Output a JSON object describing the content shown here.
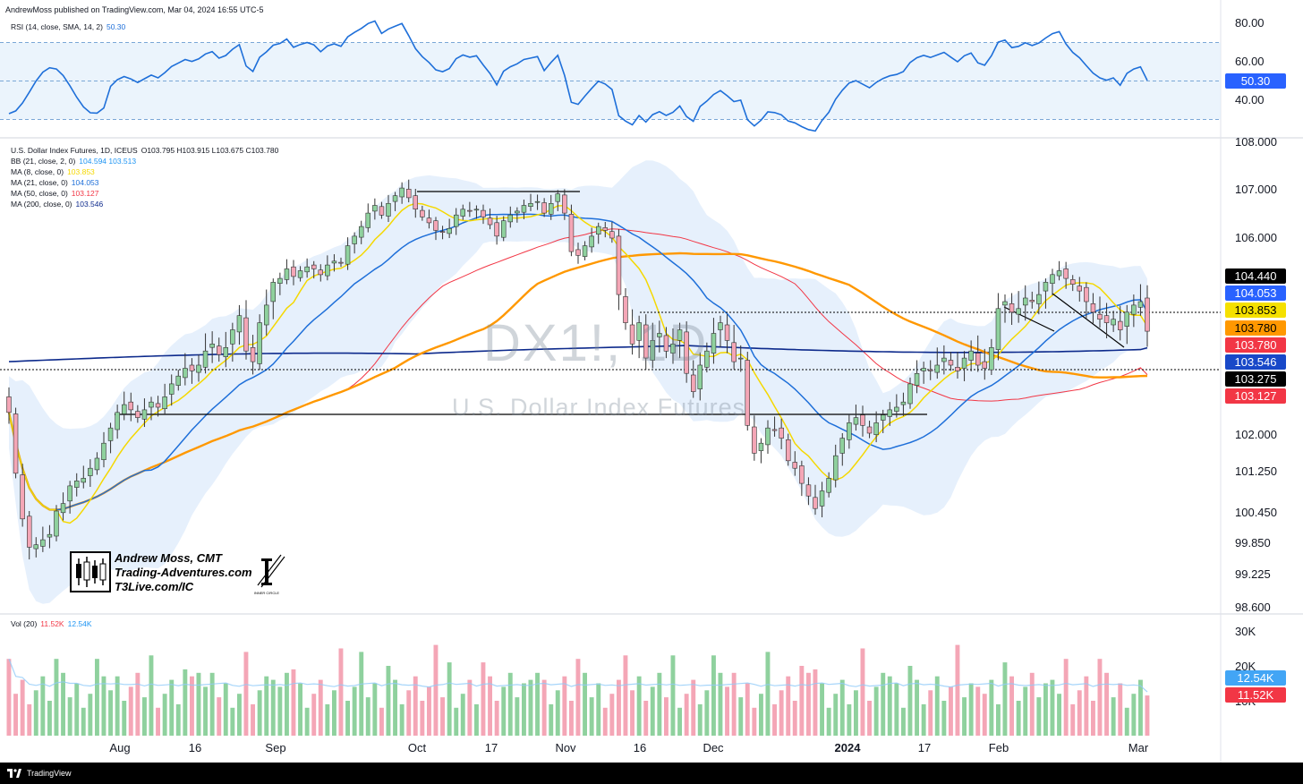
{
  "header": {
    "published": "AndrewMoss published on TradingView.com, Mar 04, 2024 16:55 UTC-5"
  },
  "rsi": {
    "label": "RSI (14, close, SMA, 14, 2)",
    "value": "50.30",
    "ticks": [
      "80.00",
      "60.00",
      "40.00"
    ],
    "badge": "50.30",
    "color": "#1e6fd9"
  },
  "main": {
    "legend": [
      {
        "label": "U.S. Dollar Index Futures, 1D, ICEUS",
        "values": "O103.795  H103.915  L103.675  C103.780",
        "color": "#131722"
      },
      {
        "label": "BB (21, close, 2, 0)",
        "values": "104.594  103.513",
        "color": "#2196f3"
      },
      {
        "label": "MA (8, close, 0)",
        "values": "103.853",
        "color": "#f5d800"
      },
      {
        "label": "MA (21, close, 0)",
        "values": "104.053",
        "color": "#1e6fd9"
      },
      {
        "label": "MA (50, close, 0)",
        "values": "103.127",
        "color": "#f23645"
      },
      {
        "label": "MA (200, close, 0)",
        "values": "103.546",
        "color": "#0d2a8c"
      }
    ],
    "price_ticks": [
      "108.000",
      "107.000",
      "106.000",
      "102.000",
      "101.250",
      "100.450",
      "99.850",
      "99.225",
      "98.600"
    ],
    "badges": [
      {
        "text": "104.440",
        "bg": "#000000",
        "fg": "#ffffff"
      },
      {
        "text": "104.053",
        "bg": "#2962ff",
        "fg": "#ffffff"
      },
      {
        "text": "103.853",
        "bg": "#f5e000",
        "fg": "#000000"
      },
      {
        "text": "103.780",
        "bg": "#ff9800",
        "fg": "#000000"
      },
      {
        "text": "103.780",
        "bg": "#f23645",
        "fg": "#ffffff"
      },
      {
        "text": "103.546",
        "bg": "#1848c8",
        "fg": "#ffffff"
      },
      {
        "text": "103.275",
        "bg": "#000000",
        "fg": "#ffffff"
      },
      {
        "text": "103.127",
        "bg": "#f23645",
        "fg": "#ffffff"
      }
    ],
    "watermark_symbol": "DX1!, 1D",
    "watermark_name": "U.S. Dollar Index Futures"
  },
  "volume": {
    "label": "Vol (20)",
    "v1": "11.52K",
    "v2": "12.54K",
    "ticks": [
      "30K",
      "20K",
      "10K"
    ],
    "badges": [
      {
        "text": "12.54K",
        "bg": "#42a5f5",
        "fg": "#ffffff"
      },
      {
        "text": "11.52K",
        "bg": "#f23645",
        "fg": "#ffffff"
      }
    ]
  },
  "time_axis": [
    "Aug",
    "16",
    "Sep",
    "Oct",
    "17",
    "Nov",
    "16",
    "Dec",
    "2024",
    "17",
    "Feb",
    "Mar"
  ],
  "logo": {
    "line1": "Andrew Moss, CMT",
    "line2": "Trading-Adventures.com",
    "line3": "T3Live.com/IC",
    "ic_text": "INNER CIRCLE"
  },
  "footer": {
    "brand": "TradingView"
  },
  "chart_data": {
    "type": "candlestick",
    "symbol": "DX1!",
    "timeframe": "1D",
    "ylim": [
      98.6,
      108.0
    ],
    "last_close": 103.78,
    "closes": [
      102.4,
      101.2,
      100.3,
      99.75,
      99.8,
      99.9,
      100.0,
      100.45,
      100.6,
      100.95,
      101.05,
      101.1,
      101.3,
      101.5,
      101.8,
      102.1,
      102.4,
      102.55,
      102.45,
      102.3,
      102.45,
      102.6,
      102.5,
      102.7,
      102.95,
      103.1,
      103.25,
      103.2,
      103.3,
      103.5,
      103.6,
      103.45,
      103.55,
      103.8,
      104.0,
      103.5,
      103.35,
      103.9,
      104.15,
      104.5,
      104.6,
      104.85,
      104.65,
      104.8,
      104.9,
      104.85,
      104.7,
      104.95,
      105.05,
      105.0,
      105.45,
      105.7,
      105.95,
      106.3,
      106.5,
      106.25,
      106.55,
      106.75,
      106.95,
      106.7,
      106.4,
      106.2,
      106.05,
      105.85,
      105.8,
      105.9,
      106.25,
      106.4,
      106.35,
      106.4,
      106.2,
      106.0,
      105.7,
      106.1,
      106.25,
      106.35,
      106.5,
      106.55,
      106.6,
      106.3,
      106.55,
      106.8,
      106.3,
      105.3,
      105.2,
      105.45,
      105.7,
      105.95,
      105.85,
      105.65,
      104.3,
      103.9,
      103.6,
      103.9,
      103.4,
      103.65,
      103.75,
      103.5,
      103.6,
      103.8,
      103.15,
      102.8,
      103.3,
      103.5,
      103.75,
      103.9,
      103.65,
      103.35,
      103.4,
      102.15,
      101.6,
      101.8,
      102.1,
      102.05,
      101.9,
      101.45,
      101.3,
      101.0,
      100.75,
      100.5,
      100.85,
      101.1,
      101.55,
      101.9,
      102.2,
      102.3,
      102.15,
      102.0,
      102.2,
      102.35,
      102.45,
      102.5,
      102.6,
      102.95,
      103.15,
      103.25,
      103.2,
      103.3,
      103.4,
      103.3,
      103.2,
      103.4,
      103.5,
      103.3,
      103.25,
      103.55,
      104.1,
      104.2,
      104.05,
      104.1,
      104.25,
      104.2,
      104.3,
      104.5,
      104.7,
      104.8,
      104.6,
      104.45,
      104.35,
      104.2,
      104.05,
      103.95,
      103.9,
      103.95,
      103.8,
      104.05,
      104.15,
      104.2,
      103.78
    ],
    "rsi_last": 50.3,
    "ma8_last": 103.853,
    "ma21_last": 104.053,
    "ma50_last": 103.127,
    "ma200_last": 103.546,
    "bb_upper_last": 104.594,
    "bb_lower_last": 103.513,
    "volume_ticks_k": [
      30,
      20,
      10
    ],
    "vol_last_k": 11.52,
    "vol_ma_last_k": 12.54
  }
}
